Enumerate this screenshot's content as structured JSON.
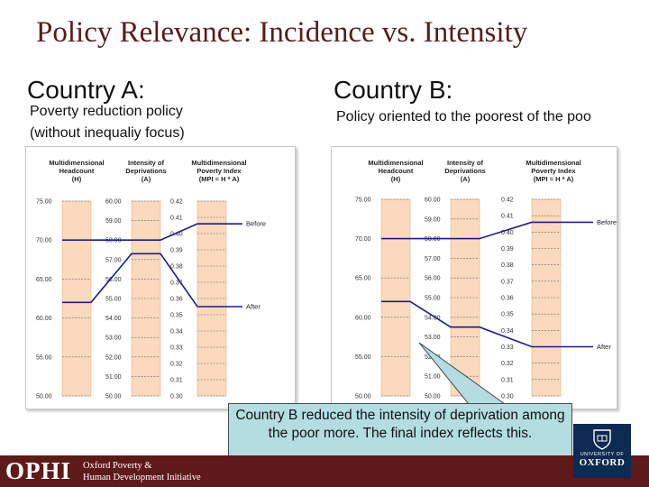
{
  "slide": {
    "title": "Policy Relevance: Incidence vs. Intensity"
  },
  "country_a": {
    "heading": "Country A:",
    "subtitle_line1": "Poverty reduction policy",
    "subtitle_line2": "(without inequaliy focus)"
  },
  "country_b": {
    "heading": "Country B:",
    "subtitle": "Policy oriented to the poorest of the poo"
  },
  "chart_data": [
    {
      "type": "diagram",
      "columns": [
        {
          "header": [
            "Multidimensional",
            "Headcount",
            "(H)"
          ],
          "ticks": [
            "75.00",
            "70.00",
            "65.00",
            "60.00",
            "55.00",
            "50.00"
          ]
        },
        {
          "header": [
            "Intensity of",
            "Deprivations",
            "(A)"
          ],
          "ticks": [
            "60.00",
            "59.00",
            "58.00",
            "57.00",
            "56.00",
            "55.00",
            "54.00",
            "53.00",
            "52.00",
            "51.00",
            "50.00"
          ]
        },
        {
          "header": [
            "Multidimensional",
            "Poverty Index",
            "(MPI = H * A)"
          ],
          "ticks": [
            "0.42",
            "0.41",
            "0.40",
            "0.39",
            "0.38",
            "0.37",
            "0.36",
            "0.35",
            "0.34",
            "0.33",
            "0.32",
            "0.31",
            "0.30"
          ]
        }
      ],
      "lines": [
        {
          "name": "Before",
          "H": 70,
          "A": 58,
          "MPI": 0.406
        },
        {
          "name": "After",
          "H": 62,
          "A": 57.3,
          "MPI": 0.355
        }
      ]
    },
    {
      "type": "diagram",
      "columns": [
        {
          "header": [
            "Multidimensional",
            "Headcount",
            "(H)"
          ],
          "ticks": [
            "75.00",
            "70.00",
            "65.00",
            "60.00",
            "55.00",
            "50.00"
          ]
        },
        {
          "header": [
            "Intensity of",
            "Deprivations",
            "(A)"
          ],
          "ticks": [
            "60.00",
            "59.00",
            "58.00",
            "57.00",
            "56.00",
            "55.00",
            "54.00",
            "53.00",
            "52.00",
            "51.00",
            "50.00"
          ]
        },
        {
          "header": [
            "Multidimensional",
            "Poverty Index",
            "(MPI = H * A)"
          ],
          "ticks": [
            "0.42",
            "0.41",
            "0.40",
            "0.39",
            "0.38",
            "0.37",
            "0.36",
            "0.35",
            "0.34",
            "0.33",
            "0.32",
            "0.31",
            "0.30"
          ]
        }
      ],
      "lines": [
        {
          "name": "Before",
          "H": 70,
          "A": 58,
          "MPI": 0.406
        },
        {
          "name": "After",
          "H": 62,
          "A": 53.5,
          "MPI": 0.33
        }
      ]
    }
  ],
  "callout": {
    "text": "Country B reduced the intensity of deprivation among the poor more. The final index reflects this."
  },
  "footer": {
    "logo": "OPHI",
    "org_line1": "Oxford Poverty &",
    "org_line2": "Human Development Initiative",
    "oxford_small": "UNIVERSITY OF",
    "oxford_big": "OXFORD"
  },
  "colors": {
    "title": "#5a1a1a",
    "column_fill": "#fbd9bc",
    "line": "#1c1c8c",
    "callout_fill": "#b4dde2",
    "footer_bar": "#5e1a1a",
    "oxford_blue": "#0c2a52"
  }
}
